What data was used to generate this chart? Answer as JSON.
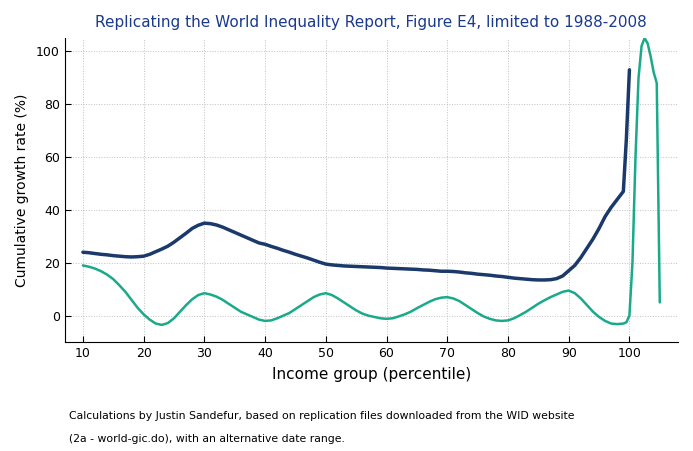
{
  "title": "Replicating the World Inequality Report, Figure E4, limited to 1988-2008",
  "xlabel": "Income group (percentile)",
  "ylabel": "Cumulative growth rate (%)",
  "caption_line1": "Calculations by Justin Sandefur, based on replication files downloaded from the WID website",
  "caption_line2": "(2a - world-gic.do), with an alternative date range.",
  "xlim": [
    7,
    108
  ],
  "ylim": [
    -10,
    105
  ],
  "xticks": [
    10,
    20,
    30,
    40,
    50,
    60,
    70,
    80,
    90,
    100
  ],
  "yticks": [
    0,
    20,
    40,
    60,
    80,
    100
  ],
  "background_color": "#ffffff",
  "grid_color": "#c0c0c0",
  "dark_blue_color": "#1b3a6b",
  "teal_color": "#1aaa8a",
  "title_color": "#1a3a8c",
  "dark_blue_x": [
    10,
    11,
    12,
    13,
    14,
    15,
    16,
    17,
    18,
    19,
    20,
    21,
    22,
    23,
    24,
    25,
    26,
    27,
    28,
    29,
    30,
    31,
    32,
    33,
    34,
    35,
    36,
    37,
    38,
    39,
    40,
    41,
    42,
    43,
    44,
    45,
    46,
    47,
    48,
    49,
    50,
    51,
    52,
    53,
    54,
    55,
    56,
    57,
    58,
    59,
    60,
    61,
    62,
    63,
    64,
    65,
    66,
    67,
    68,
    69,
    70,
    71,
    72,
    73,
    74,
    75,
    76,
    77,
    78,
    79,
    80,
    81,
    82,
    83,
    84,
    85,
    86,
    87,
    88,
    89,
    90,
    91,
    92,
    93,
    94,
    95,
    96,
    97,
    98,
    99,
    99.5,
    100
  ],
  "dark_blue_y": [
    24,
    23.8,
    23.5,
    23.2,
    23.0,
    22.7,
    22.5,
    22.3,
    22.2,
    22.3,
    22.5,
    23.2,
    24.2,
    25.2,
    26.3,
    27.8,
    29.5,
    31.2,
    33.0,
    34.2,
    35.0,
    34.8,
    34.3,
    33.5,
    32.5,
    31.5,
    30.5,
    29.5,
    28.5,
    27.5,
    27.0,
    26.2,
    25.5,
    24.7,
    24.0,
    23.2,
    22.5,
    21.8,
    21.0,
    20.2,
    19.5,
    19.2,
    19.0,
    18.8,
    18.7,
    18.6,
    18.5,
    18.4,
    18.3,
    18.2,
    18.0,
    17.9,
    17.8,
    17.7,
    17.6,
    17.5,
    17.3,
    17.2,
    17.0,
    16.8,
    16.8,
    16.7,
    16.5,
    16.2,
    16.0,
    15.7,
    15.5,
    15.3,
    15.0,
    14.8,
    14.5,
    14.2,
    14.0,
    13.8,
    13.6,
    13.5,
    13.5,
    13.6,
    14.0,
    15.0,
    17.0,
    19.0,
    22.0,
    25.5,
    29.0,
    33.0,
    37.5,
    41.0,
    44.0,
    47.0,
    67.0,
    93.0
  ],
  "teal_x": [
    10,
    11,
    12,
    13,
    14,
    15,
    16,
    17,
    18,
    19,
    20,
    21,
    22,
    23,
    24,
    25,
    26,
    27,
    28,
    29,
    30,
    31,
    32,
    33,
    34,
    35,
    36,
    37,
    38,
    39,
    40,
    41,
    42,
    43,
    44,
    45,
    46,
    47,
    48,
    49,
    50,
    51,
    52,
    53,
    54,
    55,
    56,
    57,
    58,
    59,
    60,
    61,
    62,
    63,
    64,
    65,
    66,
    67,
    68,
    69,
    70,
    71,
    72,
    73,
    74,
    75,
    76,
    77,
    78,
    79,
    80,
    81,
    82,
    83,
    84,
    85,
    86,
    87,
    88,
    89,
    90,
    91,
    92,
    93,
    94,
    95,
    96,
    97,
    98,
    99,
    99.5,
    100,
    100.5,
    101,
    101.5,
    102,
    102.5,
    103,
    103.5,
    104,
    104.5,
    105
  ],
  "teal_y": [
    19,
    18.5,
    17.8,
    16.8,
    15.5,
    13.8,
    11.5,
    9.0,
    6.0,
    3.0,
    0.5,
    -1.5,
    -3.0,
    -3.5,
    -2.8,
    -1.0,
    1.5,
    4.0,
    6.2,
    7.8,
    8.5,
    8.0,
    7.2,
    6.0,
    4.5,
    3.0,
    1.5,
    0.5,
    -0.5,
    -1.5,
    -2.0,
    -1.8,
    -1.0,
    0.0,
    1.0,
    2.5,
    4.0,
    5.5,
    7.0,
    8.0,
    8.5,
    7.8,
    6.5,
    5.0,
    3.5,
    2.0,
    0.8,
    0.0,
    -0.5,
    -1.0,
    -1.2,
    -1.0,
    -0.3,
    0.5,
    1.5,
    2.8,
    4.0,
    5.2,
    6.2,
    6.8,
    7.0,
    6.5,
    5.5,
    4.0,
    2.5,
    1.0,
    -0.3,
    -1.2,
    -1.8,
    -2.0,
    -1.8,
    -1.0,
    0.2,
    1.5,
    3.0,
    4.5,
    5.8,
    7.0,
    8.0,
    9.0,
    9.5,
    8.5,
    6.5,
    4.0,
    1.5,
    -0.5,
    -2.0,
    -3.0,
    -3.2,
    -3.0,
    -2.5,
    0.0,
    20.0,
    60.0,
    90.0,
    102.0,
    105.0,
    103.0,
    98.0,
    92.0,
    88.0,
    5.0
  ]
}
